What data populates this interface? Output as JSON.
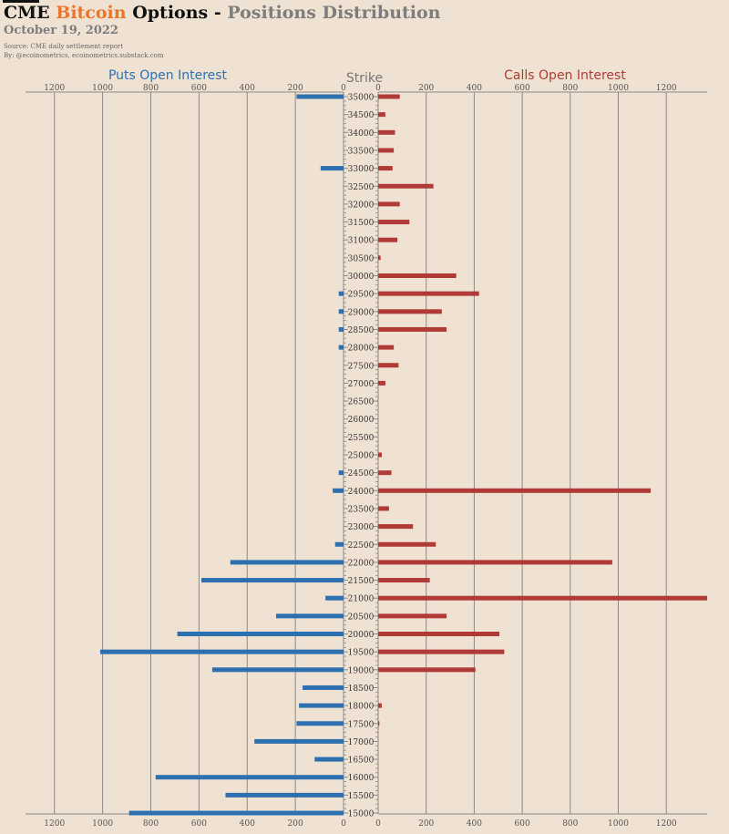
{
  "header": {
    "title_cme": "CME",
    "title_bitcoin": "Bitcoin",
    "title_options": "Options -",
    "title_rest": "Positions Distribution",
    "date": "October 19, 2022",
    "source": "Source: CME daily settlement report",
    "by": "By: @ecoinometrics, ecoinometrics.substack.com"
  },
  "colors": {
    "puts": "#2d70b0",
    "calls": "#b03a35",
    "grid": "#8a8a8a",
    "background": "#f0e2d3"
  },
  "chart_data": {
    "type": "bar",
    "orientation": "horizontal-butterfly",
    "strike_label": "Strike",
    "puts_label": "Puts Open Interest",
    "calls_label": "Calls Open Interest",
    "tick_values": [
      0,
      200,
      400,
      600,
      800,
      1000,
      1200
    ],
    "puts_xlim": [
      0,
      1320
    ],
    "calls_xlim": [
      0,
      1370
    ],
    "grid": true,
    "strikes": [
      35000,
      34500,
      34000,
      33500,
      33000,
      32500,
      32000,
      31500,
      31000,
      30500,
      30000,
      29500,
      29000,
      28500,
      28000,
      27500,
      27000,
      26500,
      26000,
      25500,
      25000,
      24500,
      24000,
      23500,
      23000,
      22500,
      22000,
      21500,
      21000,
      20500,
      20000,
      19500,
      19000,
      18500,
      18000,
      17500,
      17000,
      16500,
      16000,
      15500,
      15000
    ],
    "series": [
      {
        "name": "Puts Open Interest",
        "values": [
          195,
          0,
          0,
          0,
          95,
          0,
          0,
          0,
          0,
          0,
          0,
          20,
          20,
          20,
          20,
          0,
          0,
          0,
          0,
          0,
          0,
          20,
          45,
          0,
          0,
          35,
          470,
          590,
          75,
          280,
          690,
          1010,
          545,
          170,
          185,
          195,
          370,
          120,
          780,
          490,
          890
        ]
      },
      {
        "name": "Calls Open Interest",
        "values": [
          90,
          30,
          70,
          65,
          60,
          230,
          90,
          130,
          80,
          10,
          325,
          420,
          265,
          285,
          65,
          85,
          30,
          0,
          0,
          0,
          15,
          55,
          1135,
          45,
          145,
          240,
          975,
          215,
          1370,
          285,
          505,
          525,
          405,
          0,
          15,
          5,
          0,
          0,
          0,
          0,
          0
        ]
      }
    ]
  }
}
